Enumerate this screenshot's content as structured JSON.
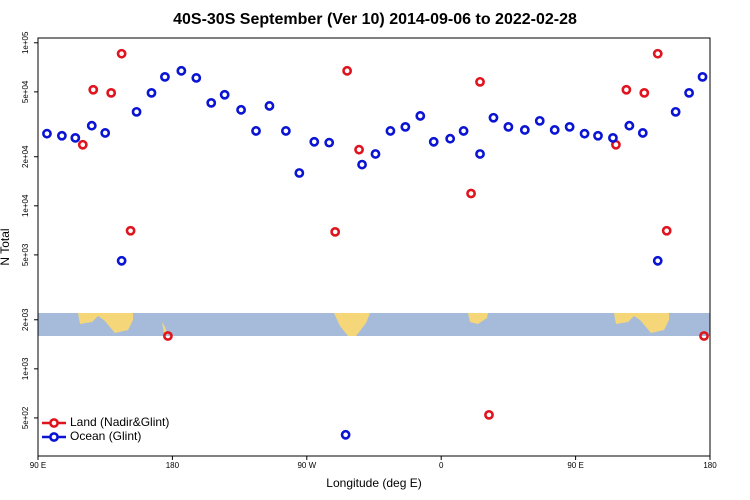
{
  "chart_data": {
    "type": "scatter",
    "title": "40S-30S September (Ver 10)   2014-09-06 to 2022-02-28",
    "xlabel": "Longitude (deg E)",
    "ylabel": "N Total",
    "log_y": true,
    "legend": "bottom-left",
    "xlim": [
      90,
      540
    ],
    "xticks": [
      {
        "value": 90,
        "label": "90 E"
      },
      180,
      {
        "value": 270,
        "label": "90 W"
      },
      {
        "value": 360,
        "label": "0"
      },
      {
        "value": 450,
        "label": "90 E"
      },
      {
        "value": 540,
        "label": "180"
      }
    ],
    "ylim": [
      292,
      107000
    ],
    "yticks": [
      {
        "value": 100000,
        "label": "1e+05"
      },
      {
        "value": 50000,
        "label": "5e+04"
      },
      {
        "value": 20000,
        "label": "2e+04"
      },
      {
        "value": 10000,
        "label": "1e+04"
      },
      {
        "value": 5000,
        "label": "5e+03"
      },
      {
        "value": 2000,
        "label": "2e+03"
      },
      {
        "value": 1000,
        "label": "1e+03"
      },
      {
        "value": 500,
        "label": "5e+02"
      }
    ],
    "series": [
      {
        "name": "Land (Nadir&Glint)",
        "color": "#e0141e",
        "x": [
          120,
          127,
          139,
          146,
          152,
          177,
          289,
          297,
          305,
          380,
          386,
          392,
          477,
          484,
          496,
          505,
          511,
          536
        ],
        "values": [
          23700,
          51500,
          49300,
          85700,
          7030,
          1590,
          6920,
          67300,
          22100,
          11900,
          57600,
          522,
          23700,
          51500,
          49300,
          85700,
          7030,
          1590
        ]
      },
      {
        "name": "Ocean (Glint)",
        "color": "#0a14d2",
        "x": [
          96,
          106,
          115,
          126,
          135,
          146,
          156,
          166,
          175,
          186,
          196,
          206,
          215,
          226,
          236,
          245,
          256,
          265,
          275,
          285,
          296,
          307,
          316,
          326,
          336,
          346,
          355,
          366,
          375,
          386,
          395,
          405,
          416,
          426,
          436,
          446,
          456,
          465,
          475,
          486,
          495,
          505,
          517,
          526,
          535
        ],
        "values": [
          27700,
          26900,
          26100,
          31000,
          28000,
          4600,
          37700,
          49300,
          61800,
          67300,
          60900,
          42800,
          48000,
          38800,
          28800,
          41000,
          28800,
          15900,
          24700,
          24400,
          394,
          17900,
          20800,
          28800,
          30500,
          35600,
          24700,
          25800,
          28800,
          20800,
          34700,
          30500,
          29200,
          33200,
          29200,
          30500,
          27700,
          26900,
          26100,
          31000,
          28000,
          4600,
          37700,
          49300,
          61800
        ]
      }
    ]
  }
}
